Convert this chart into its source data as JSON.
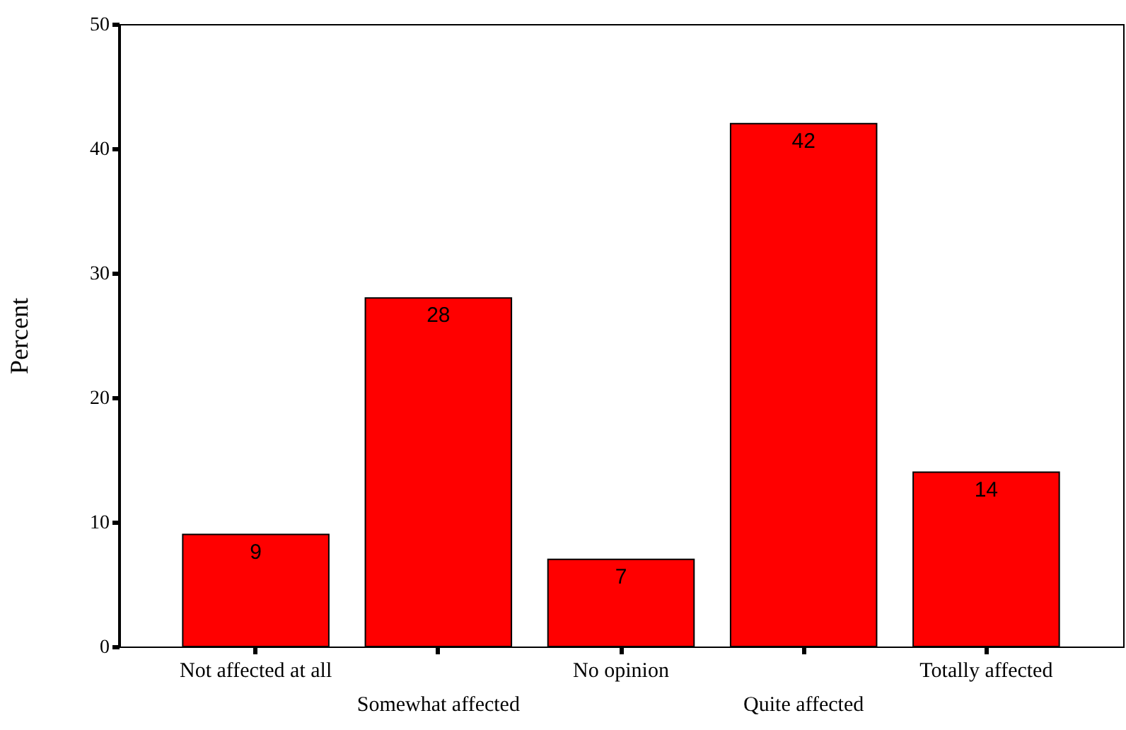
{
  "chart_data": {
    "type": "bar",
    "ylabel": "Percent",
    "categories": [
      "Not affected at all",
      "Somewhat affected",
      "No opinion",
      "Quite affected",
      "Totally affected"
    ],
    "values": [
      9,
      28,
      7,
      42,
      14
    ],
    "color": "#ff0000",
    "data_labels": true,
    "ylim": [
      0,
      50
    ],
    "yticks": [
      0,
      10,
      20,
      30,
      40,
      50
    ],
    "grid": false
  }
}
